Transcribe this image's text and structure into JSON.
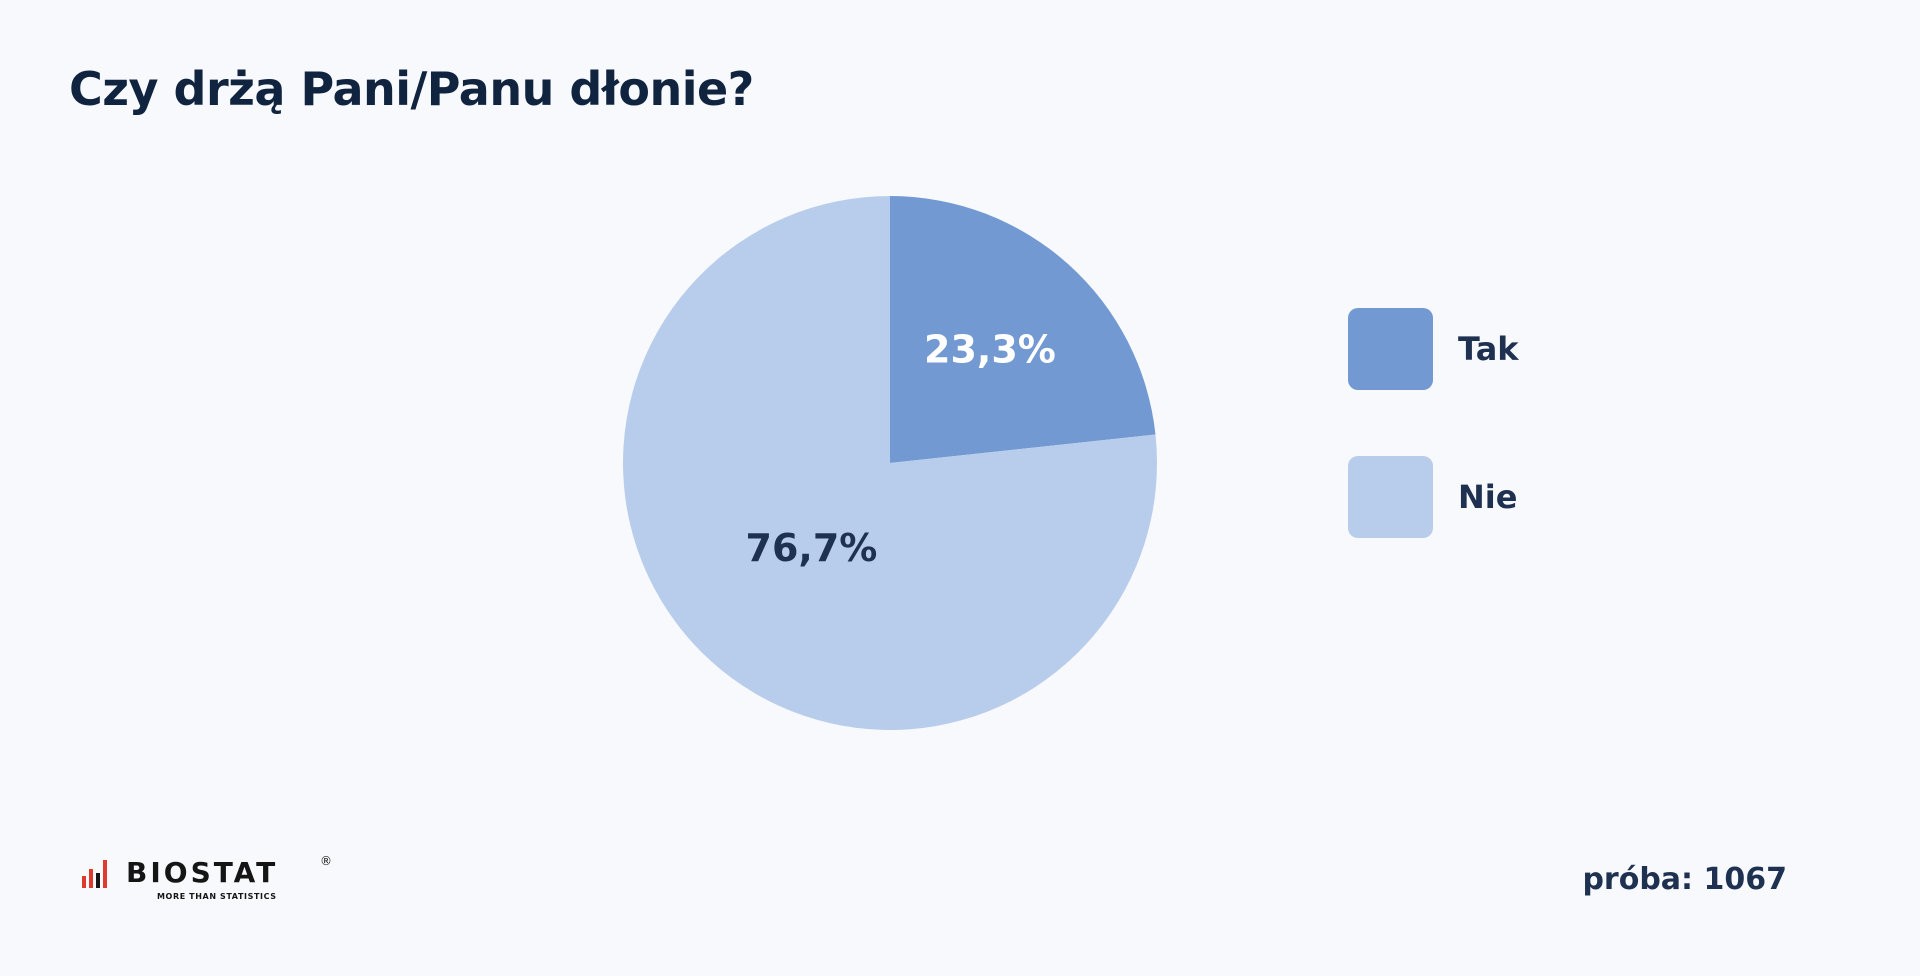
{
  "title": "Czy drżą Pani/Panu dłonie?",
  "chart_data": {
    "type": "pie",
    "title": "Czy drżą Pani/Panu dłonie?",
    "slices": [
      {
        "label": "Tak",
        "value": 23.3,
        "display": "23,3%",
        "color": "#7399d3",
        "label_color": "#ffffff"
      },
      {
        "label": "Nie",
        "value": 76.7,
        "display": "76,7%",
        "color": "#b8cdec",
        "label_color": "#1f3150"
      }
    ],
    "legend_position": "right"
  },
  "legend": [
    {
      "label": "Tak",
      "color": "#7399d3"
    },
    {
      "label": "Nie",
      "color": "#b8cdec"
    }
  ],
  "logo": {
    "name": "BIOSTAT",
    "tagline": "MORE THAN STATISTICS",
    "mark": "®"
  },
  "sample_text": "próba: 1067"
}
